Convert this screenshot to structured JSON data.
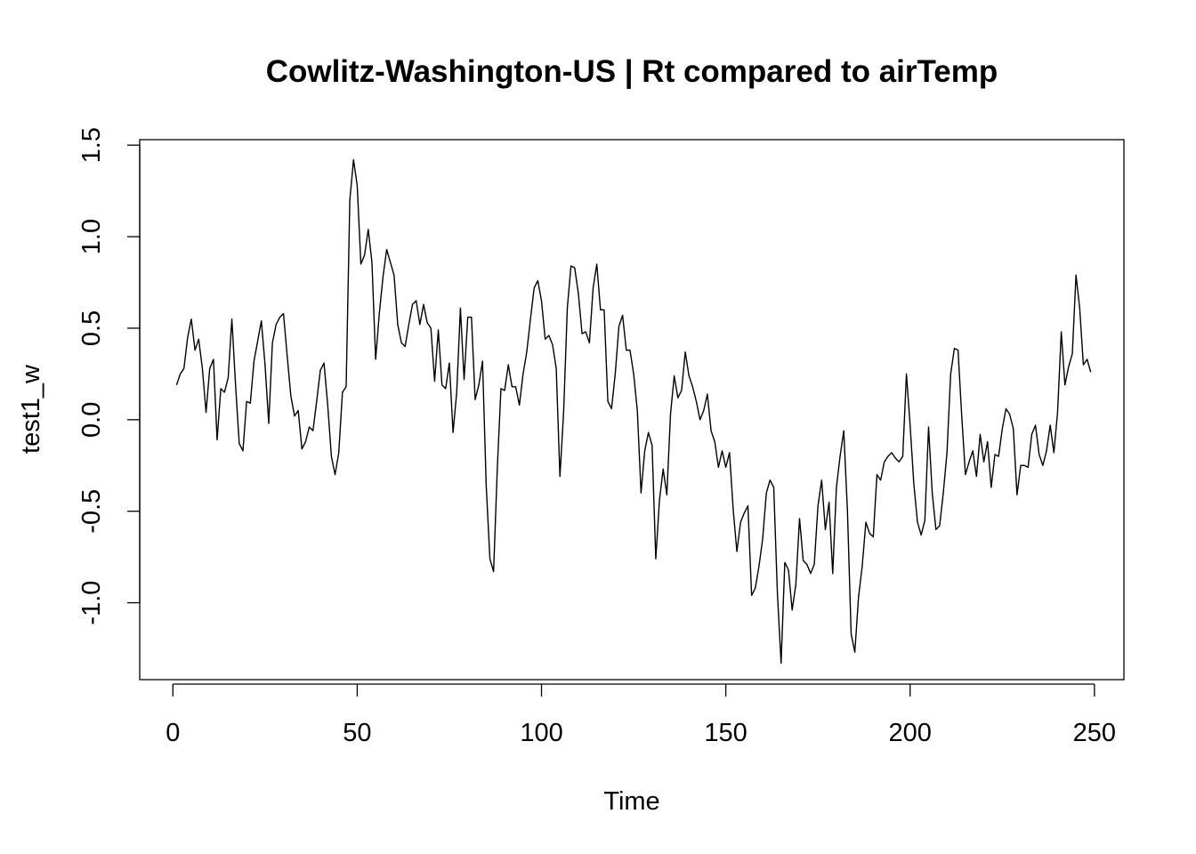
{
  "chart_data": {
    "type": "line",
    "title": "Cowlitz-Washington-US | Rt compared to airTemp",
    "xlabel": "Time",
    "ylabel": "test1_w",
    "xlim": [
      -9,
      258
    ],
    "ylim": [
      -1.42,
      1.53
    ],
    "xticks": [
      0,
      50,
      100,
      150,
      200,
      250
    ],
    "xtick_labels": [
      "0",
      "50",
      "100",
      "150",
      "200",
      "250"
    ],
    "yticks": [
      -1.0,
      -0.5,
      0.0,
      0.5,
      1.0,
      1.5
    ],
    "ytick_labels": [
      "-1.0",
      "-0.5",
      "0.0",
      "0.5",
      "1.0",
      "1.5"
    ],
    "grid": false,
    "legend": "none",
    "line_color": "#000000",
    "x_start": 1,
    "series": [
      {
        "values": [
          0.19,
          0.25,
          0.28,
          0.45,
          0.55,
          0.38,
          0.44,
          0.28,
          0.04,
          0.28,
          0.33,
          -0.11,
          0.17,
          0.15,
          0.23,
          0.55,
          0.19,
          -0.13,
          -0.17,
          0.1,
          0.09,
          0.32,
          0.43,
          0.54,
          0.3,
          -0.02,
          0.42,
          0.52,
          0.56,
          0.58,
          0.35,
          0.13,
          0.02,
          0.05,
          -0.16,
          -0.12,
          -0.04,
          -0.06,
          0.1,
          0.27,
          0.31,
          0.08,
          -0.2,
          -0.3,
          -0.18,
          0.15,
          0.18,
          1.2,
          1.42,
          1.28,
          0.85,
          0.9,
          1.04,
          0.86,
          0.33,
          0.58,
          0.78,
          0.93,
          0.86,
          0.79,
          0.52,
          0.42,
          0.4,
          0.52,
          0.63,
          0.65,
          0.52,
          0.63,
          0.53,
          0.5,
          0.21,
          0.49,
          0.19,
          0.17,
          0.31,
          -0.07,
          0.15,
          0.61,
          0.22,
          0.56,
          0.56,
          0.11,
          0.19,
          0.32,
          -0.36,
          -0.76,
          -0.83,
          -0.27,
          0.17,
          0.16,
          0.3,
          0.18,
          0.18,
          0.08,
          0.25,
          0.37,
          0.55,
          0.72,
          0.76,
          0.65,
          0.44,
          0.46,
          0.41,
          0.28,
          -0.31,
          0.04,
          0.61,
          0.84,
          0.83,
          0.69,
          0.47,
          0.48,
          0.42,
          0.72,
          0.85,
          0.6,
          0.6,
          0.1,
          0.06,
          0.25,
          0.51,
          0.57,
          0.38,
          0.38,
          0.25,
          0.05,
          -0.4,
          -0.17,
          -0.07,
          -0.14,
          -0.76,
          -0.44,
          -0.27,
          -0.41,
          0.03,
          0.24,
          0.12,
          0.16,
          0.37,
          0.24,
          0.18,
          0.1,
          0.0,
          0.05,
          0.14,
          -0.06,
          -0.12,
          -0.26,
          -0.17,
          -0.26,
          -0.18,
          -0.49,
          -0.72,
          -0.56,
          -0.51,
          -0.47,
          -0.96,
          -0.92,
          -0.8,
          -0.65,
          -0.4,
          -0.33,
          -0.37,
          -0.95,
          -1.33,
          -0.78,
          -0.82,
          -1.04,
          -0.9,
          -0.54,
          -0.77,
          -0.79,
          -0.84,
          -0.79,
          -0.47,
          -0.33,
          -0.6,
          -0.45,
          -0.84,
          -0.37,
          -0.2,
          -0.06,
          -0.5,
          -1.17,
          -1.27,
          -0.97,
          -0.8,
          -0.56,
          -0.62,
          -0.64,
          -0.3,
          -0.33,
          -0.23,
          -0.2,
          -0.18,
          -0.21,
          -0.23,
          -0.2,
          0.25,
          -0.03,
          -0.35,
          -0.56,
          -0.63,
          -0.55,
          -0.04,
          -0.4,
          -0.6,
          -0.58,
          -0.4,
          -0.18,
          0.25,
          0.39,
          0.38,
          0.02,
          -0.3,
          -0.23,
          -0.17,
          -0.31,
          -0.08,
          -0.23,
          -0.12,
          -0.37,
          -0.19,
          -0.2,
          -0.05,
          0.06,
          0.03,
          -0.05,
          -0.41,
          -0.25,
          -0.25,
          -0.26,
          -0.08,
          -0.03,
          -0.19,
          -0.25,
          -0.17,
          -0.03,
          -0.18,
          0.04,
          0.48,
          0.19,
          0.29,
          0.36,
          0.79,
          0.61,
          0.3,
          0.33,
          0.26
        ]
      }
    ]
  }
}
